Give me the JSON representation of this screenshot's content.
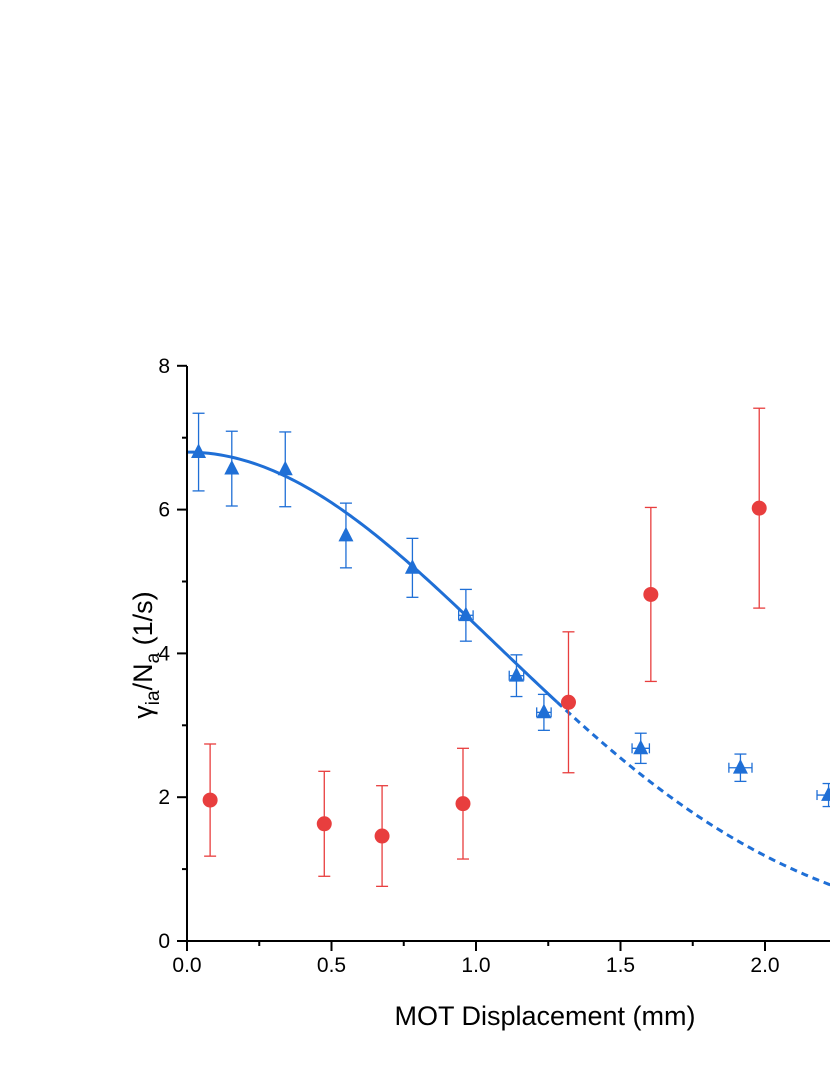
{
  "chart_data": {
    "type": "scatter",
    "xlabel": "MOT Displacement (mm)",
    "ylabel": {
      "gamma": "γ",
      "gamma_sub": "ia",
      "slash_n": "/N",
      "n_sub": "a",
      "unit": " (1/s)"
    },
    "xlim": [
      0,
      2.25
    ],
    "ylim": [
      0,
      8
    ],
    "x_ticks": [
      0.0,
      0.5,
      1.0,
      1.5,
      2.0
    ],
    "x_tick_labels": [
      "0.0",
      "0.5",
      "1.0",
      "1.5",
      "2.0"
    ],
    "y_ticks": [
      0,
      2,
      4,
      6,
      8
    ],
    "y_tick_labels": [
      "0",
      "2",
      "4",
      "6",
      "8"
    ],
    "grid": false,
    "colors": {
      "blue": "#1f6fd6",
      "red": "#e83e3e"
    },
    "series": [
      {
        "marker": "triangle",
        "color": "#1f6fd6",
        "points": [
          {
            "x": 0.04,
            "y": 6.8,
            "yerr": 0.54,
            "xerr": 0.0
          },
          {
            "x": 0.155,
            "y": 6.57,
            "yerr": 0.52,
            "xerr": 0.0
          },
          {
            "x": 0.34,
            "y": 6.56,
            "yerr": 0.52,
            "xerr": 0.0
          },
          {
            "x": 0.55,
            "y": 5.64,
            "yerr": 0.45,
            "xerr": 0.0
          },
          {
            "x": 0.78,
            "y": 5.19,
            "yerr": 0.41,
            "xerr": 0.0
          },
          {
            "x": 0.965,
            "y": 4.53,
            "yerr": 0.36,
            "xerr": 0.025
          },
          {
            "x": 1.14,
            "y": 3.69,
            "yerr": 0.29,
            "xerr": 0.025
          },
          {
            "x": 1.235,
            "y": 3.18,
            "yerr": 0.25,
            "xerr": 0.025
          },
          {
            "x": 1.57,
            "y": 2.68,
            "yerr": 0.21,
            "xerr": 0.03
          },
          {
            "x": 1.915,
            "y": 2.41,
            "yerr": 0.19,
            "xerr": 0.04
          },
          {
            "x": 2.22,
            "y": 2.03,
            "yerr": 0.16,
            "xerr": 0.04
          }
        ]
      },
      {
        "marker": "circle",
        "color": "#e83e3e",
        "points": [
          {
            "x": 0.08,
            "y": 1.96,
            "yerr": 0.78
          },
          {
            "x": 0.475,
            "y": 1.63,
            "yerr": 0.73
          },
          {
            "x": 0.675,
            "y": 1.46,
            "yerr": 0.7
          },
          {
            "x": 0.955,
            "y": 1.91,
            "yerr": 0.77
          },
          {
            "x": 1.32,
            "y": 3.32,
            "yerr": 0.98
          },
          {
            "x": 1.605,
            "y": 4.82,
            "yerr": 1.21
          },
          {
            "x": 1.98,
            "y": 6.02,
            "yerr": 1.39
          }
        ]
      }
    ],
    "fit": {
      "model": "gaussian",
      "amplitude": 6.8,
      "sigma": 1.07,
      "color": "#1f6fd6",
      "solid_range": [
        0.0,
        1.28
      ],
      "dashed_range": [
        1.28,
        2.25
      ]
    }
  }
}
